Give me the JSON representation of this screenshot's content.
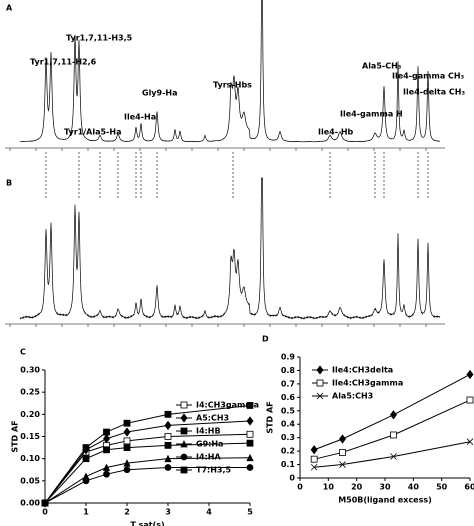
{
  "spectra": {
    "panels": [
      "A",
      "B"
    ],
    "peak_labels": [
      "Tyr1,7,11-H2,6",
      "Tyr1,7,11-H3,5",
      "Tyr1/Ala5-Ha",
      "Ile4-Ha",
      "Gly9-Ha",
      "Tyrs-Hbs",
      "Ile4- Hb",
      "Ile4-gamma H",
      "Ala5-CH₃",
      "Ile4-gamma CH₃",
      "Ile4-delta CH₃"
    ]
  },
  "chart_data": [
    {
      "type": "line",
      "panel": "C",
      "xlabel": "T sat(s)",
      "ylabel": "STD AF",
      "x": [
        0,
        1,
        1.5,
        2,
        3,
        5
      ],
      "xlim": [
        0,
        5
      ],
      "xticks": [
        0,
        1,
        2,
        3,
        4,
        5
      ],
      "ylim": [
        0,
        0.3
      ],
      "yticks": [
        {
          "value": 0,
          "label": "0.00"
        },
        {
          "value": 0.05,
          "label": "0.05"
        },
        {
          "value": 0.1,
          "label": "0.10"
        },
        {
          "value": 0.15,
          "label": "0.15"
        },
        {
          "value": 0.2,
          "label": "0.20"
        },
        {
          "value": 0.25,
          "label": "0.25"
        },
        {
          "value": 0.3,
          "label": "0.30"
        }
      ],
      "series": [
        {
          "name": "I4:CH3gamma",
          "color": "#000000",
          "marker": "square-open",
          "values": [
            0,
            0.115,
            0.13,
            0.14,
            0.15,
            0.155
          ]
        },
        {
          "name": "A5:CH3",
          "color": "#000000",
          "marker": "diamond",
          "values": [
            0,
            0.12,
            0.145,
            0.16,
            0.175,
            0.185
          ]
        },
        {
          "name": "I4:HB",
          "color": "#000000",
          "marker": "square",
          "values": [
            0,
            0.1,
            0.12,
            0.125,
            0.13,
            0.135
          ]
        },
        {
          "name": "G9:Ha",
          "color": "#000000",
          "marker": "triangle",
          "values": [
            0,
            0.06,
            0.08,
            0.09,
            0.1,
            0.102
          ]
        },
        {
          "name": "I4:HA",
          "color": "#000000",
          "marker": "circle",
          "values": [
            0,
            0.05,
            0.065,
            0.075,
            0.08,
            0.08
          ]
        },
        {
          "name": "T7:H3,5",
          "color": "#000000",
          "marker": "square",
          "values": [
            0,
            0.125,
            0.16,
            0.18,
            0.2,
            0.22
          ]
        }
      ]
    },
    {
      "type": "line",
      "panel": "D",
      "xlabel": "M50B(ligand excess)",
      "ylabel": "STD AF",
      "x": [
        5,
        15,
        33,
        60
      ],
      "xlim": [
        0,
        60
      ],
      "xticks": [
        0,
        10,
        20,
        30,
        40,
        50,
        60
      ],
      "ylim": [
        0,
        0.9
      ],
      "yticks": [
        0,
        0.1,
        0.2,
        0.3,
        0.4,
        0.5,
        0.6,
        0.7,
        0.8,
        0.9
      ],
      "series": [
        {
          "name": "Ile4:CH3delta",
          "color": "#000000",
          "marker": "diamond",
          "values": [
            0.21,
            0.29,
            0.47,
            0.77
          ]
        },
        {
          "name": "Ile4:CH3gamma",
          "color": "#000000",
          "marker": "square-open",
          "values": [
            0.14,
            0.19,
            0.32,
            0.58
          ]
        },
        {
          "name": "Ala5:CH3",
          "color": "#000000",
          "marker": "cross",
          "values": [
            0.08,
            0.1,
            0.16,
            0.27
          ]
        }
      ]
    }
  ]
}
